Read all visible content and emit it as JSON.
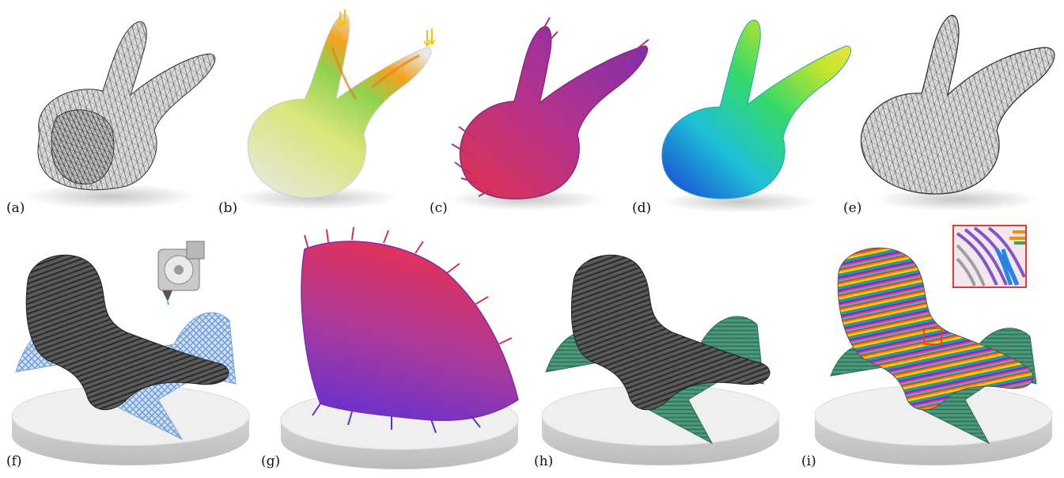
{
  "figure": {
    "panels": [
      {
        "id": "a",
        "label": "(a)"
      },
      {
        "id": "b",
        "label": "(b)"
      },
      {
        "id": "c",
        "label": "(c)"
      },
      {
        "id": "d",
        "label": "(d)"
      },
      {
        "id": "e",
        "label": "(e)"
      },
      {
        "id": "f",
        "label": "(f)"
      },
      {
        "id": "g",
        "label": "(g)"
      },
      {
        "id": "h",
        "label": "(h)"
      },
      {
        "id": "i",
        "label": "(i)"
      }
    ]
  }
}
